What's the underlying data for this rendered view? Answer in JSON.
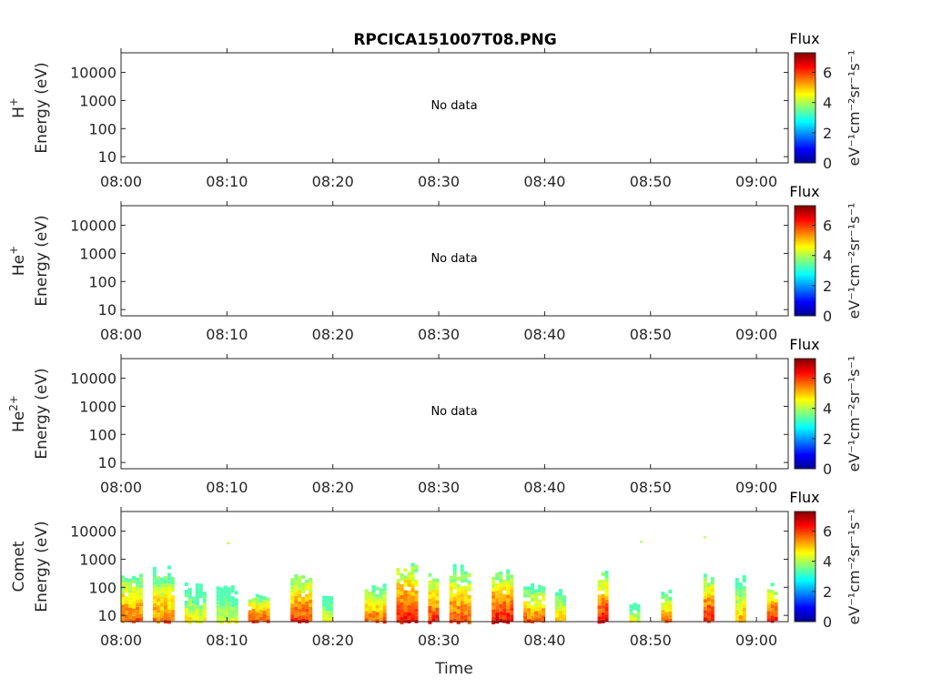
{
  "title": "RPCICA151007T08.PNG",
  "x_axis_label": "Time",
  "time_ticks": [
    "08:00",
    "08:10",
    "08:20",
    "08:30",
    "08:40",
    "08:50",
    "09:00"
  ],
  "energy_ticks": [
    "10000",
    "1000",
    "100",
    "10"
  ],
  "colorbar": {
    "title": "Flux",
    "ticks": [
      "0",
      "2",
      "4",
      "6"
    ],
    "label": "eV⁻¹cm⁻²sr⁻¹s⁻¹",
    "colormap": "jet",
    "range": [
      0,
      7.3
    ]
  },
  "panels": [
    {
      "species": "H",
      "species_sup": "+",
      "ylabel": "Energy (eV)",
      "no_data_text": "No data"
    },
    {
      "species": "He",
      "species_sup": "+",
      "ylabel": "Energy (eV)",
      "no_data_text": "No data"
    },
    {
      "species": "He",
      "species_sup": "2+",
      "ylabel": "Energy (eV)",
      "no_data_text": "No data"
    },
    {
      "species": "Comet",
      "species_sup": "",
      "ylabel": "Energy (eV)",
      "no_data_text": ""
    }
  ],
  "chart_data": [
    {
      "type": "heatmap",
      "title": "RPCICA151007T08.PNG",
      "species": "H+",
      "xlabel": "",
      "ylabel": "Energy (eV)",
      "yscale": "log",
      "ylim": [
        6,
        50000
      ],
      "xlim": [
        "08:00",
        "09:03"
      ],
      "values": [],
      "note_text": "No data"
    },
    {
      "type": "heatmap",
      "species": "He+",
      "xlabel": "",
      "ylabel": "Energy (eV)",
      "yscale": "log",
      "ylim": [
        6,
        50000
      ],
      "xlim": [
        "08:00",
        "09:03"
      ],
      "values": [],
      "note_text": "No data"
    },
    {
      "type": "heatmap",
      "species": "He2+",
      "xlabel": "",
      "ylabel": "Energy (eV)",
      "yscale": "log",
      "ylim": [
        6,
        50000
      ],
      "xlim": [
        "08:00",
        "09:03"
      ],
      "values": [],
      "note_text": "No data"
    },
    {
      "type": "heatmap",
      "species": "Comet",
      "xlabel": "Time",
      "ylabel": "Energy (eV)",
      "yscale": "log",
      "ylim": [
        6,
        50000
      ],
      "xlim": [
        "08:00",
        "09:03"
      ],
      "color_range": [
        0,
        7.3
      ],
      "bursts": [
        {
          "start": "08:00",
          "end": "08:02",
          "min_energy": 7,
          "max_energy": 500,
          "peak_flux": 6.2
        },
        {
          "start": "08:03",
          "end": "08:05",
          "min_energy": 10,
          "max_energy": 600,
          "peak_flux": 6.0
        },
        {
          "start": "08:06",
          "end": "08:08",
          "min_energy": 7,
          "max_energy": 150,
          "peak_flux": 5.0
        },
        {
          "start": "08:09",
          "end": "08:11",
          "min_energy": 7,
          "max_energy": 120,
          "peak_flux": 4.8
        },
        {
          "start": "08:12",
          "end": "08:14",
          "min_energy": 7,
          "max_energy": 60,
          "peak_flux": 6.6
        },
        {
          "start": "08:16",
          "end": "08:18",
          "min_energy": 7,
          "max_energy": 500,
          "peak_flux": 6.5
        },
        {
          "start": "08:19",
          "end": "08:20",
          "min_energy": 7,
          "max_energy": 80,
          "peak_flux": 4.8
        },
        {
          "start": "08:23",
          "end": "08:25",
          "min_energy": 7,
          "max_energy": 150,
          "peak_flux": 6.2
        },
        {
          "start": "08:26",
          "end": "08:28",
          "min_energy": 7,
          "max_energy": 1100,
          "peak_flux": 6.8
        },
        {
          "start": "08:29",
          "end": "08:30",
          "min_energy": 7,
          "max_energy": 500,
          "peak_flux": 6.6
        },
        {
          "start": "08:31",
          "end": "08:33",
          "min_energy": 7,
          "max_energy": 700,
          "peak_flux": 6.3
        },
        {
          "start": "08:35",
          "end": "08:37",
          "min_energy": 7,
          "max_energy": 450,
          "peak_flux": 6.9
        },
        {
          "start": "08:38",
          "end": "08:40",
          "min_energy": 7,
          "max_energy": 150,
          "peak_flux": 6.2
        },
        {
          "start": "08:41",
          "end": "08:42",
          "min_energy": 7,
          "max_energy": 100,
          "peak_flux": 5.6
        },
        {
          "start": "08:45",
          "end": "08:46",
          "min_energy": 7,
          "max_energy": 450,
          "peak_flux": 6.9
        },
        {
          "start": "08:48",
          "end": "08:49",
          "min_energy": 7,
          "max_energy": 30,
          "peak_flux": 5.0
        },
        {
          "start": "08:51",
          "end": "08:52",
          "min_energy": 7,
          "max_energy": 100,
          "peak_flux": 6.0
        },
        {
          "start": "08:55",
          "end": "08:56",
          "min_energy": 7,
          "max_energy": 350,
          "peak_flux": 6.9
        },
        {
          "start": "08:58",
          "end": "08:59",
          "min_energy": 7,
          "max_energy": 350,
          "peak_flux": 5.5
        },
        {
          "start": "09:01",
          "end": "09:02",
          "min_energy": 7,
          "max_energy": 150,
          "peak_flux": 6.9
        }
      ],
      "isolated_points": [
        {
          "time": "08:10",
          "energy": 4000
        },
        {
          "time": "08:49",
          "energy": 4500
        },
        {
          "time": "08:55",
          "energy": 6500
        }
      ]
    }
  ]
}
